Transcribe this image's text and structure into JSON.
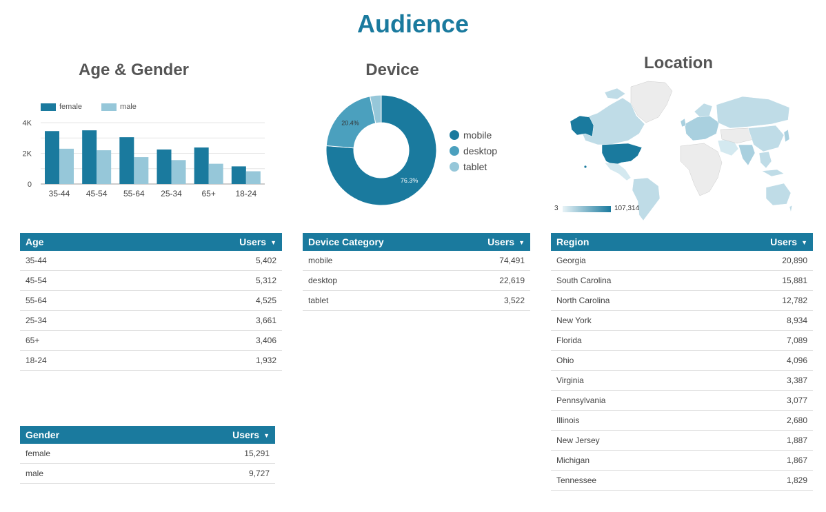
{
  "page": {
    "title": "Audience"
  },
  "colors": {
    "dark": "#1a7a9e",
    "mid": "#4ba0be",
    "light": "#96c7d9",
    "header": "#1a7a9e"
  },
  "age_gender": {
    "title": "Age & Gender",
    "legend": [
      "female",
      "male"
    ],
    "chart_data": {
      "type": "bar",
      "categories": [
        "35-44",
        "45-54",
        "55-64",
        "25-34",
        "65+",
        "18-24"
      ],
      "series": [
        {
          "name": "female",
          "values": [
            3450,
            3500,
            3050,
            2250,
            2380,
            1150
          ]
        },
        {
          "name": "male",
          "values": [
            2300,
            2200,
            1750,
            1560,
            1320,
            830
          ]
        }
      ],
      "yticks": [
        "0",
        "2K",
        "4K"
      ],
      "ylim": [
        0,
        4000
      ],
      "grid": true,
      "legend_position": "top-left"
    }
  },
  "device": {
    "title": "Device",
    "legend": [
      "mobile",
      "desktop",
      "tablet"
    ],
    "chart_data": {
      "type": "pie",
      "donut": true,
      "labels": [
        "mobile",
        "desktop",
        "tablet"
      ],
      "values": [
        76.3,
        20.4,
        3.3
      ],
      "slice_labels": [
        "76.3%",
        "20.4%",
        ""
      ],
      "legend_position": "right"
    }
  },
  "location": {
    "title": "Location",
    "scale_min": "3",
    "scale_max": "107,314"
  },
  "age_table": {
    "headers": [
      "Age",
      "Users"
    ],
    "rows": [
      [
        "35-44",
        "5,402"
      ],
      [
        "45-54",
        "5,312"
      ],
      [
        "55-64",
        "4,525"
      ],
      [
        "25-34",
        "3,661"
      ],
      [
        "65+",
        "3,406"
      ],
      [
        "18-24",
        "1,932"
      ]
    ]
  },
  "device_table": {
    "headers": [
      "Device Category",
      "Users"
    ],
    "rows": [
      [
        "mobile",
        "74,491"
      ],
      [
        "desktop",
        "22,619"
      ],
      [
        "tablet",
        "3,522"
      ]
    ]
  },
  "region_table": {
    "headers": [
      "Region",
      "Users"
    ],
    "rows": [
      [
        "Georgia",
        "20,890"
      ],
      [
        "South Carolina",
        "15,881"
      ],
      [
        "North Carolina",
        "12,782"
      ],
      [
        "New York",
        "8,934"
      ],
      [
        "Florida",
        "7,089"
      ],
      [
        "Ohio",
        "4,096"
      ],
      [
        "Virginia",
        "3,387"
      ],
      [
        "Pennsylvania",
        "3,077"
      ],
      [
        "Illinois",
        "2,680"
      ],
      [
        "New Jersey",
        "1,887"
      ],
      [
        "Michigan",
        "1,867"
      ],
      [
        "Tennessee",
        "1,829"
      ]
    ]
  },
  "gender_table": {
    "headers": [
      "Gender",
      "Users"
    ],
    "rows": [
      [
        "female",
        "15,291"
      ],
      [
        "male",
        "9,727"
      ]
    ]
  }
}
